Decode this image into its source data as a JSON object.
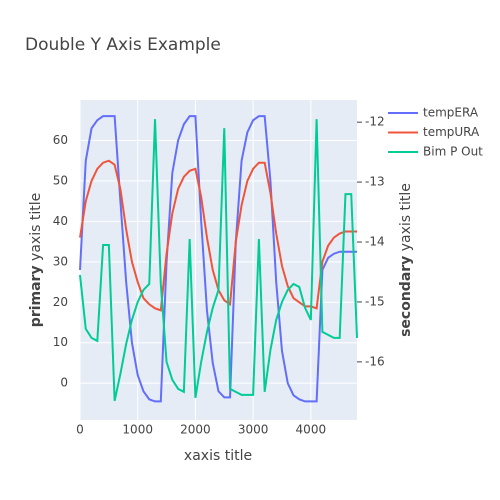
{
  "chart_data": {
    "type": "line",
    "title": "Double Y Axis Example",
    "xlabel": "xaxis title",
    "ylabel_bold": "primary",
    "ylabel": "yaxis title",
    "y2label_bold": "secondary",
    "y2label": "yaxis title",
    "x": [
      0,
      100,
      200,
      300,
      400,
      500,
      600,
      700,
      800,
      900,
      1000,
      1100,
      1200,
      1300,
      1400,
      1500,
      1600,
      1700,
      1800,
      1900,
      2000,
      2100,
      2200,
      2300,
      2400,
      2500,
      2600,
      2700,
      2800,
      2900,
      3000,
      3100,
      3200,
      3300,
      3400,
      3500,
      3600,
      3700,
      3800,
      3900,
      4000,
      4100,
      4200,
      4300,
      4400,
      4500,
      4600,
      4700,
      4800
    ],
    "xlim": [
      0,
      4800
    ],
    "xticks": [
      0,
      1000,
      2000,
      3000,
      4000
    ],
    "ylim": [
      -9.1,
      70
    ],
    "yticks": [
      0,
      10,
      20,
      30,
      40,
      50,
      60
    ],
    "y2lim": [
      -16.97,
      -11.63
    ],
    "y2ticks": [
      -16,
      -15,
      -14,
      -13,
      -12
    ],
    "grid": true,
    "series": [
      {
        "name": "tempERA",
        "color": "#636efa",
        "values": [
          28,
          55,
          63,
          65,
          66,
          66,
          66,
          45,
          25,
          10,
          2,
          -2,
          -4,
          -4.5,
          -4.5,
          30,
          52,
          60,
          64,
          66,
          66,
          40,
          18,
          5,
          -2,
          -3.5,
          -3.5,
          35,
          55,
          62,
          65,
          66,
          66,
          50,
          25,
          8,
          0,
          -3,
          -4,
          -4.5,
          -4.5,
          -4.5,
          28,
          31,
          32,
          32.5,
          32.5,
          32.5,
          32.5
        ]
      },
      {
        "name": "tempURA",
        "color": "#EF553B",
        "values": [
          36,
          45,
          50,
          53,
          54.5,
          55,
          54,
          48,
          38,
          30,
          25,
          21,
          19.5,
          18.5,
          18,
          32,
          42,
          48,
          51,
          52.5,
          53,
          46,
          36,
          28,
          23,
          20.5,
          19.5,
          35,
          44,
          50,
          53,
          54.5,
          54.5,
          47,
          37,
          29,
          24,
          21,
          20,
          19,
          19,
          18.5,
          30,
          34,
          36,
          37,
          37.5,
          37.5,
          37.5
        ]
      },
      {
        "name": "Bim P Out",
        "color": "#00cc96",
        "axis": "y2",
        "values": [
          -14.55,
          -15.45,
          -15.6,
          -15.65,
          -14.05,
          -14.05,
          -16.65,
          -16.2,
          -15.7,
          -15.3,
          -15.0,
          -14.8,
          -14.7,
          -11.95,
          -14.7,
          -16.0,
          -16.3,
          -16.45,
          -16.5,
          -13.95,
          -16.6,
          -16.0,
          -15.5,
          -15.1,
          -14.8,
          -12.1,
          -16.45,
          -16.5,
          -16.55,
          -16.55,
          -16.55,
          -13.95,
          -16.5,
          -15.8,
          -15.3,
          -15.0,
          -14.8,
          -14.7,
          -14.75,
          -15.1,
          -15.3,
          -11.95,
          -15.5,
          -15.55,
          -15.6,
          -15.6,
          -13.2,
          -13.2,
          -15.6
        ]
      }
    ]
  }
}
